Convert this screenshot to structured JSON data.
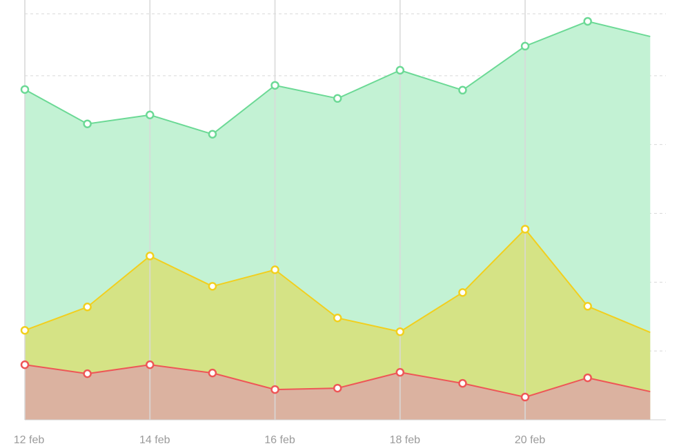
{
  "chart_data": {
    "type": "area",
    "x": [
      0,
      1,
      2,
      3,
      4,
      5,
      6,
      7,
      8,
      9,
      10
    ],
    "tick_labels": [
      {
        "x": 0,
        "label": "12 feb"
      },
      {
        "x": 2,
        "label": "14 feb"
      },
      {
        "x": 4,
        "label": "16 feb"
      },
      {
        "x": 6,
        "label": "18 feb"
      },
      {
        "x": 8,
        "label": "20 feb"
      }
    ],
    "xlim": [
      0,
      10.25
    ],
    "ylim": [
      0,
      5.9
    ],
    "y_gridlines": [
      1,
      2,
      3,
      4,
      5,
      5.9
    ],
    "grid": true,
    "legend": "none",
    "series": [
      {
        "color": "#6bd995",
        "fill": "#c3f2d4",
        "values": [
          4.8,
          4.3,
          4.43,
          4.15,
          4.86,
          4.67,
          5.08,
          4.79,
          5.43,
          5.79,
          5.57
        ]
      },
      {
        "color": "#f2cf1d",
        "fill": "#d5e385",
        "values": [
          1.3,
          1.64,
          2.38,
          1.94,
          2.18,
          1.48,
          1.28,
          1.85,
          2.77,
          1.65,
          1.27
        ]
      },
      {
        "color": "#ee5656",
        "fill": "#dbb2a0",
        "values": [
          0.8,
          0.67,
          0.8,
          0.68,
          0.44,
          0.46,
          0.69,
          0.53,
          0.33,
          0.61,
          0.41
        ]
      }
    ],
    "markers_visible_count": 10
  }
}
